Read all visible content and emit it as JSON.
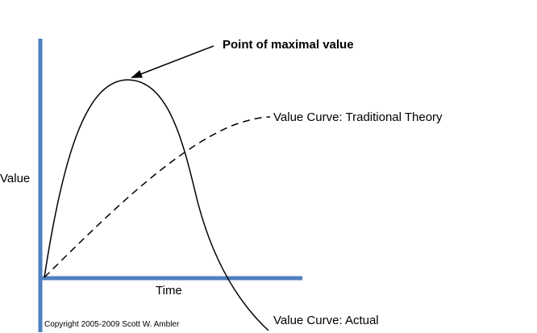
{
  "diagram": {
    "axes": {
      "y_label": "Value",
      "x_label": "Time",
      "color": "#4f7fbf"
    },
    "annotations": {
      "peak": "Point of maximal value",
      "traditional_curve": "Value Curve: Traditional Theory",
      "actual_curve": "Value Curve: Actual"
    },
    "copyright": "Copyright 2005-2009 Scott W. Ambler",
    "curves": {
      "traditional": {
        "style": "dashed",
        "color": "#000000"
      },
      "actual": {
        "style": "solid",
        "color": "#000000"
      }
    }
  }
}
